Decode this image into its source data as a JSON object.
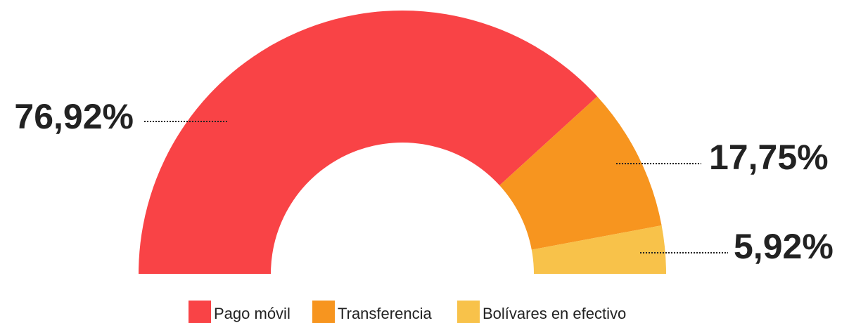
{
  "chart_data": {
    "type": "semi-donut",
    "categories": [
      "Pago móvil",
      "Transferencia",
      "Bolívares en efectivo"
    ],
    "values": [
      76.92,
      17.75,
      5.92
    ],
    "value_labels": [
      "76,92%",
      "17,75%",
      "5,92%"
    ],
    "colors": [
      "#f94346",
      "#f7951f",
      "#f8c24a"
    ]
  }
}
